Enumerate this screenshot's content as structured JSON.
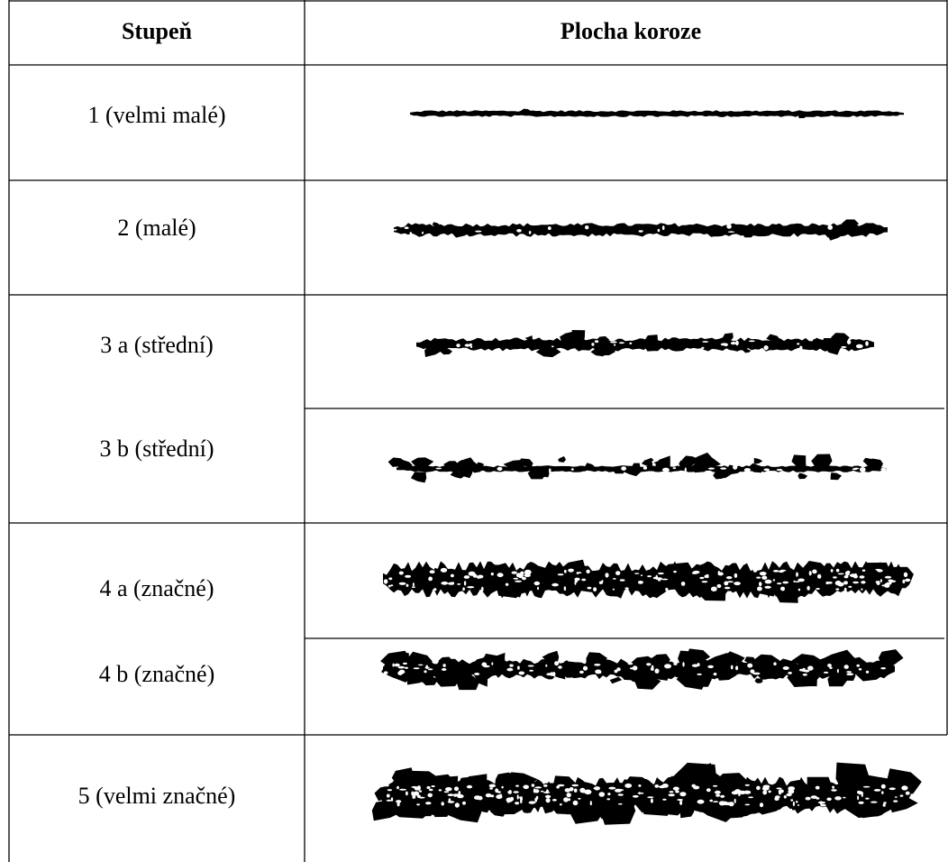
{
  "header": {
    "grade": "Stupeň",
    "area": "Plocha koroze"
  },
  "rows": [
    "1 (velmi malé)",
    "2 (malé)",
    "3 a (střední)",
    "3 b (střední)",
    "4 a (značné)",
    "4 b (značné)",
    "5 (velmi značné)"
  ]
}
